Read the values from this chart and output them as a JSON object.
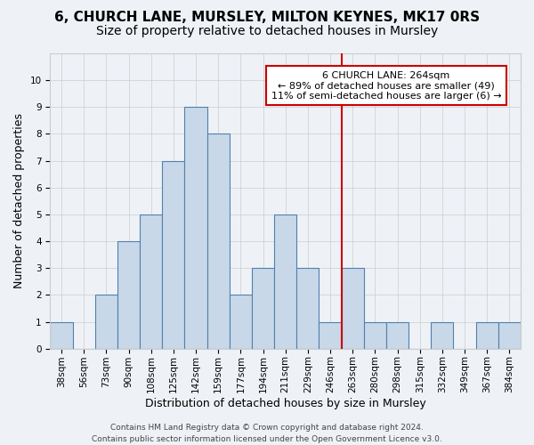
{
  "title": "6, CHURCH LANE, MURSLEY, MILTON KEYNES, MK17 0RS",
  "subtitle": "Size of property relative to detached houses in Mursley",
  "xlabel": "Distribution of detached houses by size in Mursley",
  "ylabel": "Number of detached properties",
  "bar_labels": [
    "38sqm",
    "56sqm",
    "73sqm",
    "90sqm",
    "108sqm",
    "125sqm",
    "142sqm",
    "159sqm",
    "177sqm",
    "194sqm",
    "211sqm",
    "229sqm",
    "246sqm",
    "263sqm",
    "280sqm",
    "298sqm",
    "315sqm",
    "332sqm",
    "349sqm",
    "367sqm",
    "384sqm"
  ],
  "bar_values": [
    1,
    0,
    2,
    4,
    5,
    7,
    9,
    8,
    2,
    3,
    5,
    3,
    1,
    3,
    1,
    1,
    0,
    1,
    0,
    1,
    1
  ],
  "bar_color": "#c8d8e8",
  "bar_edge_color": "#5080b0",
  "background_color": "#eef2f7",
  "grid_color": "#cccccc",
  "red_line_index": 13,
  "red_line_label": "6 CHURCH LANE: 264sqm",
  "annotation_line1": "← 89% of detached houses are smaller (49)",
  "annotation_line2": "11% of semi-detached houses are larger (6) →",
  "annotation_box_color": "#ffffff",
  "annotation_box_edge": "#cc0000",
  "ylim": [
    0,
    11
  ],
  "yticks": [
    0,
    1,
    2,
    3,
    4,
    5,
    6,
    7,
    8,
    9,
    10,
    11
  ],
  "footer": "Contains HM Land Registry data © Crown copyright and database right 2024.\nContains public sector information licensed under the Open Government Licence v3.0.",
  "title_fontsize": 11,
  "subtitle_fontsize": 10,
  "xlabel_fontsize": 9,
  "ylabel_fontsize": 9,
  "tick_fontsize": 7.5,
  "footer_fontsize": 6.5,
  "annotation_fontsize": 8.0
}
